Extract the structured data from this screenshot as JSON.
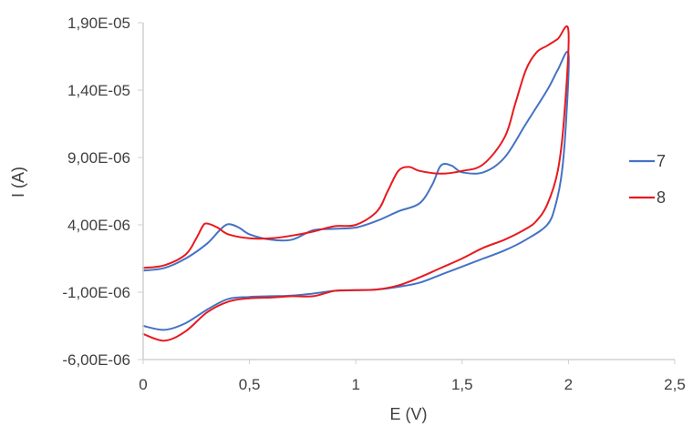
{
  "chart_data": {
    "type": "line",
    "title": "",
    "xlabel": "E (V)",
    "ylabel": "I (A)",
    "xlim": [
      0,
      2.5
    ],
    "ylim": [
      -6e-06,
      1.9e-05
    ],
    "x_ticks": [
      "0",
      "0,5",
      "1",
      "1,5",
      "2",
      "2,5"
    ],
    "y_ticks": [
      "1,90E-05",
      "1,40E-05",
      "9,00E-06",
      "4,00E-06",
      "-1,00E-06",
      "-6,00E-06"
    ],
    "x_tick_values": [
      0,
      0.5,
      1,
      1.5,
      2,
      2.5
    ],
    "y_tick_values": [
      1.9e-05,
      1.4e-05,
      9e-06,
      4e-06,
      -1e-06,
      -6e-06
    ],
    "grid": false,
    "legend_position": "right",
    "series": [
      {
        "name": "7",
        "color": "#4472C4",
        "points": [
          [
            0.0,
            6e-07
          ],
          [
            0.1,
            8e-07
          ],
          [
            0.2,
            1.5e-06
          ],
          [
            0.3,
            2.6e-06
          ],
          [
            0.36,
            3.6e-06
          ],
          [
            0.4,
            4.05e-06
          ],
          [
            0.45,
            3.8e-06
          ],
          [
            0.5,
            3.3e-06
          ],
          [
            0.6,
            2.9e-06
          ],
          [
            0.7,
            2.9e-06
          ],
          [
            0.8,
            3.6e-06
          ],
          [
            0.9,
            3.7e-06
          ],
          [
            1.0,
            3.8e-06
          ],
          [
            1.1,
            4.3e-06
          ],
          [
            1.2,
            5e-06
          ],
          [
            1.3,
            5.6e-06
          ],
          [
            1.36,
            7e-06
          ],
          [
            1.4,
            8.4e-06
          ],
          [
            1.45,
            8.4e-06
          ],
          [
            1.5,
            7.9e-06
          ],
          [
            1.6,
            7.9e-06
          ],
          [
            1.7,
            9e-06
          ],
          [
            1.8,
            1.15e-05
          ],
          [
            1.9,
            1.4e-05
          ],
          [
            1.95,
            1.55e-05
          ],
          [
            2.0,
            1.67e-05
          ],
          [
            1.99,
            1.2e-05
          ],
          [
            1.97,
            8e-06
          ],
          [
            1.94,
            5.5e-06
          ],
          [
            1.9,
            4e-06
          ],
          [
            1.8,
            2.9e-06
          ],
          [
            1.7,
            2.1e-06
          ],
          [
            1.6,
            1.5e-06
          ],
          [
            1.5,
            9e-07
          ],
          [
            1.4,
            3e-07
          ],
          [
            1.3,
            -3e-07
          ],
          [
            1.2,
            -6e-07
          ],
          [
            1.1,
            -8e-07
          ],
          [
            1.0,
            -8.5e-07
          ],
          [
            0.9,
            -9e-07
          ],
          [
            0.8,
            -1.1e-06
          ],
          [
            0.7,
            -1.25e-06
          ],
          [
            0.6,
            -1.3e-06
          ],
          [
            0.5,
            -1.35e-06
          ],
          [
            0.4,
            -1.5e-06
          ],
          [
            0.3,
            -2.3e-06
          ],
          [
            0.2,
            -3.3e-06
          ],
          [
            0.1,
            -3.8e-06
          ],
          [
            0.0,
            -3.5e-06
          ]
        ]
      },
      {
        "name": "8",
        "color": "#E8191E",
        "points": [
          [
            0.0,
            8e-07
          ],
          [
            0.1,
            1e-06
          ],
          [
            0.2,
            1.8e-06
          ],
          [
            0.25,
            3e-06
          ],
          [
            0.28,
            3.9e-06
          ],
          [
            0.3,
            4.1e-06
          ],
          [
            0.35,
            3.8e-06
          ],
          [
            0.4,
            3.3e-06
          ],
          [
            0.5,
            3e-06
          ],
          [
            0.6,
            3e-06
          ],
          [
            0.7,
            3.2e-06
          ],
          [
            0.8,
            3.5e-06
          ],
          [
            0.9,
            3.9e-06
          ],
          [
            1.0,
            4e-06
          ],
          [
            1.1,
            5e-06
          ],
          [
            1.15,
            6.5e-06
          ],
          [
            1.2,
            8e-06
          ],
          [
            1.25,
            8.3e-06
          ],
          [
            1.3,
            8e-06
          ],
          [
            1.4,
            7.8e-06
          ],
          [
            1.5,
            8e-06
          ],
          [
            1.6,
            8.5e-06
          ],
          [
            1.7,
            1.05e-05
          ],
          [
            1.75,
            1.3e-05
          ],
          [
            1.8,
            1.55e-05
          ],
          [
            1.85,
            1.68e-05
          ],
          [
            1.9,
            1.73e-05
          ],
          [
            1.95,
            1.78e-05
          ],
          [
            2.0,
            1.84e-05
          ],
          [
            1.98,
            1.2e-05
          ],
          [
            1.95,
            8e-06
          ],
          [
            1.9,
            5.5e-06
          ],
          [
            1.85,
            4.3e-06
          ],
          [
            1.8,
            3.7e-06
          ],
          [
            1.7,
            2.9e-06
          ],
          [
            1.6,
            2.3e-06
          ],
          [
            1.5,
            1.5e-06
          ],
          [
            1.4,
            8e-07
          ],
          [
            1.3,
            1e-07
          ],
          [
            1.2,
            -5e-07
          ],
          [
            1.1,
            -8e-07
          ],
          [
            1.0,
            -8.5e-07
          ],
          [
            0.9,
            -9e-07
          ],
          [
            0.8,
            -1.3e-06
          ],
          [
            0.7,
            -1.3e-06
          ],
          [
            0.6,
            -1.4e-06
          ],
          [
            0.5,
            -1.45e-06
          ],
          [
            0.4,
            -1.7e-06
          ],
          [
            0.3,
            -2.5e-06
          ],
          [
            0.2,
            -3.9e-06
          ],
          [
            0.1,
            -4.6e-06
          ],
          [
            0.0,
            -4.1e-06
          ]
        ]
      }
    ]
  }
}
